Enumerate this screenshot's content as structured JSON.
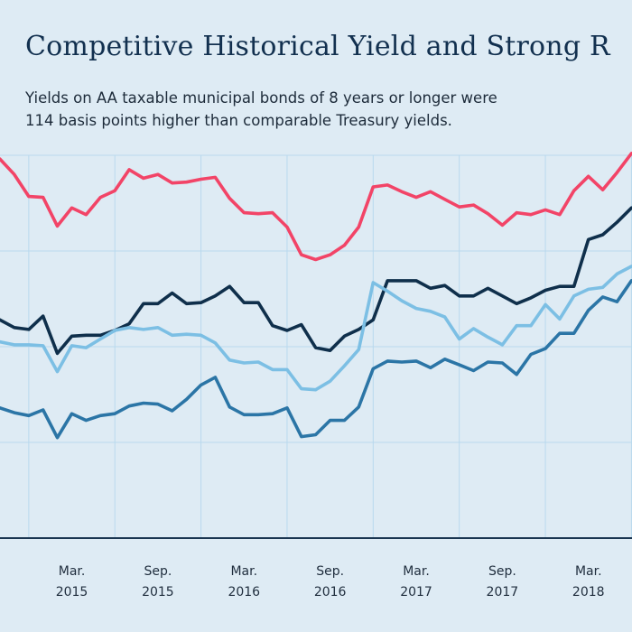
{
  "chart_data": {
    "type": "line",
    "title": "Competitive Historical Yield and Strong R",
    "subtitle_lines": [
      "Yields on AA taxable municipal bonds of 8 years or longer were",
      "114 basis points higher than comparable Treasury yields."
    ],
    "xlabel": "",
    "ylabel": "",
    "x_start": 2014.75,
    "x_end": 2018.42,
    "y_range": [
      0,
      4
    ],
    "grid": true,
    "x_ticks": [
      {
        "x": 2015.167,
        "month": "Mar.",
        "year": "2015"
      },
      {
        "x": 2015.667,
        "month": "Sep.",
        "year": "2015"
      },
      {
        "x": 2016.167,
        "month": "Mar.",
        "year": "2016"
      },
      {
        "x": 2016.667,
        "month": "Sep.",
        "year": "2016"
      },
      {
        "x": 2017.167,
        "month": "Mar.",
        "year": "2017"
      },
      {
        "x": 2017.667,
        "month": "Sep.",
        "year": "2017"
      },
      {
        "x": 2018.167,
        "month": "Mar.",
        "year": "2018"
      }
    ],
    "x_gridlines": [
      2014.917,
      2015.417,
      2015.917,
      2016.417,
      2016.917,
      2017.417,
      2017.917,
      2018.417
    ],
    "y_gridlines": [
      1,
      2,
      3,
      4
    ],
    "x": [
      2014.75,
      2014.833,
      2014.917,
      2015.0,
      2015.083,
      2015.167,
      2015.25,
      2015.333,
      2015.417,
      2015.5,
      2015.583,
      2015.667,
      2015.75,
      2015.833,
      2015.917,
      2016.0,
      2016.083,
      2016.167,
      2016.25,
      2016.333,
      2016.417,
      2016.5,
      2016.583,
      2016.667,
      2016.75,
      2016.833,
      2016.917,
      2017.0,
      2017.083,
      2017.167,
      2017.25,
      2017.333,
      2017.417,
      2017.5,
      2017.583,
      2017.667,
      2017.75,
      2017.833,
      2017.917,
      2018.0,
      2018.083,
      2018.167,
      2018.25,
      2018.333,
      2018.417
    ],
    "series": [
      {
        "color": "#f24467",
        "values": [
          3.96,
          3.8,
          3.57,
          3.56,
          3.26,
          3.45,
          3.38,
          3.56,
          3.63,
          3.85,
          3.76,
          3.8,
          3.71,
          3.72,
          3.75,
          3.77,
          3.55,
          3.4,
          3.39,
          3.4,
          3.25,
          2.96,
          2.91,
          2.96,
          3.06,
          3.25,
          3.67,
          3.69,
          3.62,
          3.56,
          3.62,
          3.54,
          3.46,
          3.48,
          3.39,
          3.27,
          3.4,
          3.38,
          3.43,
          3.38,
          3.63,
          3.78,
          3.64,
          3.82,
          4.02
        ]
      },
      {
        "color": "#0f2f4b",
        "values": [
          2.28,
          2.2,
          2.18,
          2.32,
          1.93,
          2.11,
          2.12,
          2.12,
          2.17,
          2.24,
          2.45,
          2.45,
          2.56,
          2.45,
          2.46,
          2.53,
          2.63,
          2.46,
          2.46,
          2.22,
          2.17,
          2.23,
          1.99,
          1.96,
          2.11,
          2.18,
          2.28,
          2.69,
          2.69,
          2.69,
          2.61,
          2.64,
          2.53,
          2.53,
          2.61,
          2.53,
          2.45,
          2.51,
          2.59,
          2.63,
          2.63,
          3.12,
          3.17,
          3.3,
          3.45
        ]
      },
      {
        "color": "#7cbfe4",
        "values": [
          2.05,
          2.02,
          2.02,
          2.01,
          1.74,
          2.01,
          1.99,
          2.08,
          2.17,
          2.2,
          2.18,
          2.2,
          2.12,
          2.13,
          2.12,
          2.04,
          1.86,
          1.83,
          1.84,
          1.76,
          1.76,
          1.56,
          1.55,
          1.64,
          1.8,
          1.97,
          2.67,
          2.58,
          2.48,
          2.4,
          2.37,
          2.31,
          2.08,
          2.19,
          2.1,
          2.02,
          2.22,
          2.22,
          2.44,
          2.29,
          2.53,
          2.6,
          2.62,
          2.76,
          2.84
        ]
      },
      {
        "color": "#2b75a6",
        "values": [
          1.36,
          1.31,
          1.28,
          1.34,
          1.05,
          1.3,
          1.23,
          1.28,
          1.3,
          1.38,
          1.41,
          1.4,
          1.33,
          1.45,
          1.6,
          1.68,
          1.37,
          1.29,
          1.29,
          1.3,
          1.36,
          1.06,
          1.08,
          1.23,
          1.23,
          1.37,
          1.77,
          1.85,
          1.84,
          1.85,
          1.78,
          1.87,
          1.81,
          1.75,
          1.84,
          1.83,
          1.71,
          1.92,
          1.98,
          2.14,
          2.14,
          2.38,
          2.52,
          2.47,
          2.69
        ]
      }
    ]
  }
}
